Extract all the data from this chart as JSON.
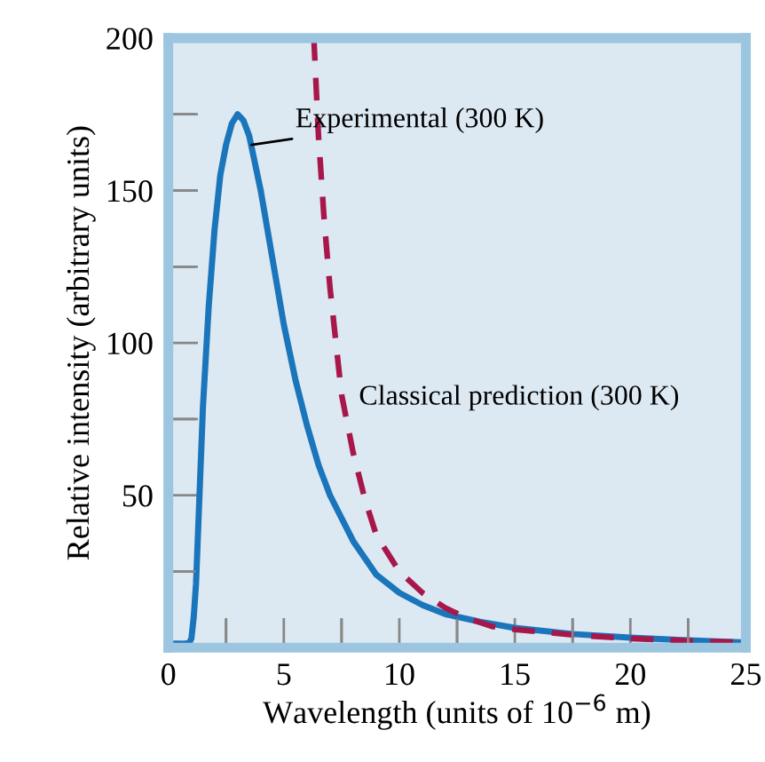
{
  "chart_data": {
    "type": "line",
    "xlabel": "Wavelength (units of 10$^{−6}$ m)",
    "ylabel": "Relative intensity (arbitrary units)",
    "series": [
      {
        "color": "#1a75bb",
        "line_style": "solid",
        "x": [
          0,
          0.6,
          0.9,
          1.0,
          1.1,
          1.2,
          1.35,
          1.5,
          1.75,
          2,
          2.25,
          2.5,
          2.75,
          3,
          3.25,
          3.5,
          4,
          4.5,
          5,
          5.5,
          6,
          6.5,
          7,
          8,
          9,
          10,
          11,
          12,
          13.5,
          15,
          17.5,
          20,
          22.5,
          25
        ],
        "values": [
          1.3,
          1.3,
          1.5,
          3,
          10,
          21,
          50,
          79,
          112,
          137,
          155,
          165,
          172,
          175,
          173,
          168,
          150,
          128,
          106,
          88,
          73,
          60,
          50,
          35,
          24,
          18,
          14,
          11,
          8.5,
          6.5,
          4.5,
          3.3,
          2.4,
          1.7
        ]
      },
      {
        "color": "#a8174a",
        "line_style": "dashed",
        "x": [
          6.3,
          6.5,
          6.75,
          7,
          7.5,
          8,
          8.5,
          9,
          10,
          11,
          12,
          13,
          14,
          15,
          17.5,
          20,
          22.5,
          25
        ],
        "values": [
          200,
          168,
          140,
          118,
          83,
          64,
          49,
          37,
          25,
          18,
          13,
          9.5,
          7,
          6,
          4.2,
          3,
          2.3,
          1.7
        ]
      }
    ],
    "annotations": [
      {
        "text": "Experimental (300 K)",
        "x": 3.6,
        "y": 165
      },
      "Classical prediction (300 K)"
    ],
    "xlim": [
      0,
      25
    ],
    "ylim": [
      0,
      200
    ],
    "xticks": [
      0,
      {
        "value": 2.5,
        "label": null
      },
      5,
      {
        "value": 7.5,
        "label": null
      },
      10,
      {
        "value": 12.5,
        "label": null
      },
      15,
      {
        "value": 17.5,
        "label": null
      },
      20,
      {
        "value": 22.5,
        "label": null
      },
      25
    ],
    "yticks": [
      {
        "value": 25,
        "label": null
      },
      50,
      {
        "value": 75,
        "label": null
      },
      100,
      {
        "value": 125,
        "label": null
      },
      150,
      {
        "value": 175,
        "label": null
      },
      200
    ],
    "grid": false,
    "legend": false
  }
}
